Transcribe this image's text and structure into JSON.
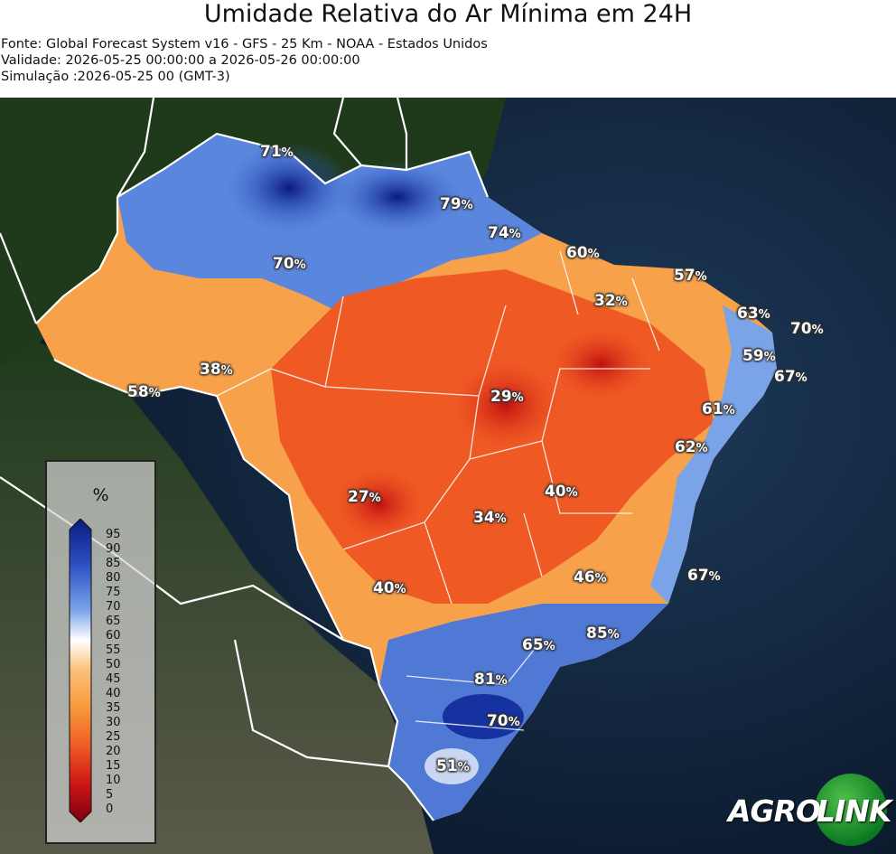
{
  "header": {
    "title": "Umidade Relativa do Ar Mínima em 24H",
    "source": "Fonte: Global Forecast System v16 - GFS - 25 Km - NOAA - Estados Unidos",
    "validity": "Validade: 2026-05-25 00:00:00 a 2026-05-26 00:00:00",
    "simulation": "Simulação :2026-05-25 00 (GMT-3)"
  },
  "legend": {
    "unit": "%",
    "ticks": [
      "95",
      "90",
      "85",
      "80",
      "75",
      "70",
      "65",
      "60",
      "55",
      "50",
      "45",
      "40",
      "35",
      "30",
      "25",
      "20",
      "15",
      "10",
      "5",
      "0"
    ],
    "colors": {
      "very_low": "#7a0010",
      "low": "#e8321e",
      "mid": "#f79b3d",
      "neutral": "#ffffff",
      "high": "#5b86dd",
      "very_high": "#0a1a80"
    }
  },
  "labels": [
    {
      "value": "71",
      "unit": "%"
    },
    {
      "value": "79",
      "unit": "%"
    },
    {
      "value": "74",
      "unit": "%"
    },
    {
      "value": "70",
      "unit": "%"
    },
    {
      "value": "60",
      "unit": "%"
    },
    {
      "value": "57",
      "unit": "%"
    },
    {
      "value": "32",
      "unit": "%"
    },
    {
      "value": "63",
      "unit": "%"
    },
    {
      "value": "70",
      "unit": "%"
    },
    {
      "value": "59",
      "unit": "%"
    },
    {
      "value": "67",
      "unit": "%"
    },
    {
      "value": "38",
      "unit": "%"
    },
    {
      "value": "58",
      "unit": "%"
    },
    {
      "value": "29",
      "unit": "%"
    },
    {
      "value": "61",
      "unit": "%"
    },
    {
      "value": "62",
      "unit": "%"
    },
    {
      "value": "27",
      "unit": "%"
    },
    {
      "value": "40",
      "unit": "%"
    },
    {
      "value": "34",
      "unit": "%"
    },
    {
      "value": "46",
      "unit": "%"
    },
    {
      "value": "67",
      "unit": "%"
    },
    {
      "value": "40",
      "unit": "%"
    },
    {
      "value": "85",
      "unit": "%"
    },
    {
      "value": "65",
      "unit": "%"
    },
    {
      "value": "81",
      "unit": "%"
    },
    {
      "value": "70",
      "unit": "%"
    },
    {
      "value": "51",
      "unit": "%"
    }
  ],
  "logo": {
    "part1": "AGRO",
    "part2": "LINK"
  }
}
